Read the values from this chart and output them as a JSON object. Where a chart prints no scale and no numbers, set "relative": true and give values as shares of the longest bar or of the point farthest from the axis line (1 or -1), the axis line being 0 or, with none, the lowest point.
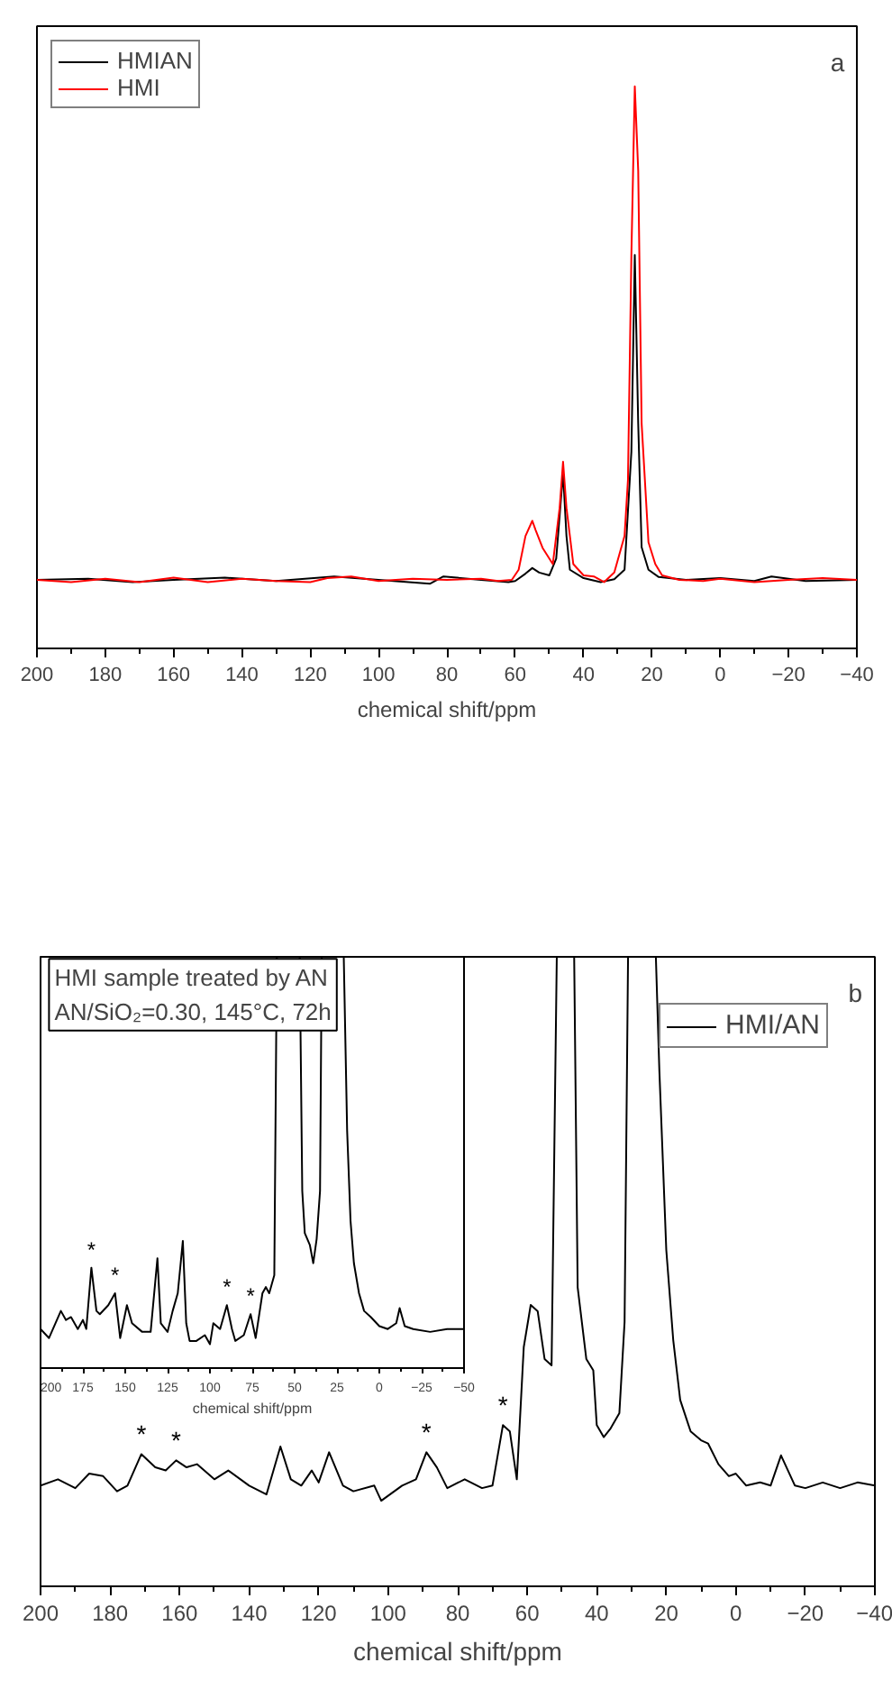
{
  "chart_data": [
    {
      "type": "line",
      "relative": true,
      "xlabel": "chemical shift/ppm",
      "xlim": [
        200,
        -40
      ],
      "xticks": [
        200,
        180,
        160,
        140,
        120,
        100,
        80,
        60,
        40,
        20,
        0,
        -20,
        -40
      ],
      "legend": "top left",
      "grid": false,
      "annotations": [
        "a"
      ],
      "series": [
        {
          "name": "HMIAN",
          "color": "#000000",
          "x": [
            200,
            185,
            172,
            160,
            145,
            130,
            113,
            100,
            85,
            81,
            70,
            62,
            60,
            57,
            55,
            53,
            50,
            48,
            46,
            45,
            44,
            40,
            35,
            31,
            28,
            26,
            25,
            24,
            23,
            21,
            18,
            10,
            0,
            -10,
            -15,
            -25,
            -40
          ],
          "values": [
            0.122,
            0.124,
            0.118,
            0.122,
            0.126,
            0.12,
            0.128,
            0.122,
            0.115,
            0.128,
            0.122,
            0.118,
            0.12,
            0.133,
            0.143,
            0.135,
            0.13,
            0.16,
            0.312,
            0.2,
            0.14,
            0.125,
            0.118,
            0.123,
            0.14,
            0.35,
            0.7,
            0.4,
            0.18,
            0.14,
            0.127,
            0.122,
            0.125,
            0.12,
            0.128,
            0.12,
            0.122
          ]
        },
        {
          "name": "HMI",
          "color": "#ff0000",
          "x": [
            200,
            190,
            180,
            170,
            160,
            150,
            140,
            130,
            120,
            115,
            108,
            100,
            90,
            80,
            70,
            65,
            61,
            59,
            57,
            55,
            54,
            52,
            49,
            47,
            46,
            45,
            43,
            40,
            37,
            34,
            31,
            28,
            27,
            26,
            25,
            24,
            23,
            21,
            19,
            17,
            12,
            5,
            0,
            -10,
            -20,
            -30,
            -40
          ],
          "values": [
            0.122,
            0.118,
            0.124,
            0.118,
            0.126,
            0.118,
            0.124,
            0.12,
            0.118,
            0.125,
            0.128,
            0.12,
            0.124,
            0.122,
            0.124,
            0.12,
            0.122,
            0.14,
            0.2,
            0.227,
            0.21,
            0.179,
            0.15,
            0.25,
            0.332,
            0.25,
            0.15,
            0.13,
            0.128,
            0.118,
            0.135,
            0.2,
            0.3,
            0.7,
            1.0,
            0.85,
            0.4,
            0.189,
            0.15,
            0.13,
            0.122,
            0.12,
            0.124,
            0.118,
            0.122,
            0.125,
            0.122
          ]
        }
      ]
    },
    {
      "type": "line",
      "relative": true,
      "xlabel": "chemical shift/ppm",
      "xlim": [
        200,
        -40
      ],
      "xticks": [
        200,
        180,
        160,
        140,
        120,
        100,
        80,
        60,
        40,
        20,
        0,
        -20,
        -40
      ],
      "legend": "top right",
      "grid": false,
      "annotations": [
        "b",
        {
          "text": "*",
          "x": 171,
          "y": 0.21
        },
        {
          "text": "*",
          "x": 161,
          "y": 0.2
        },
        {
          "text": "*",
          "x": 89,
          "y": 0.213
        },
        {
          "text": "*",
          "x": 67,
          "y": 0.256
        }
      ],
      "series": [
        {
          "name": "HMI/AN",
          "color": "#000000",
          "x": [
            200,
            195,
            190,
            186,
            182,
            178,
            175,
            171,
            167,
            164,
            161,
            158,
            155,
            150,
            146,
            140,
            135,
            131,
            128,
            125,
            122,
            120,
            117,
            113,
            110,
            104,
            102,
            96,
            92,
            89,
            86,
            83,
            78,
            73,
            70,
            67,
            65,
            63,
            61,
            59,
            57,
            55,
            53,
            51.5,
            46.5,
            45.5,
            43,
            41,
            40,
            38,
            36,
            33.5,
            32,
            31,
            23,
            22,
            20,
            18,
            16,
            13,
            10,
            8,
            5,
            2,
            0,
            -3,
            -7,
            -10,
            -13,
            -17,
            -20,
            -25,
            -30,
            -35,
            -40
          ],
          "values": [
            0.16,
            0.17,
            0.156,
            0.179,
            0.175,
            0.151,
            0.16,
            0.21,
            0.189,
            0.184,
            0.2,
            0.189,
            0.194,
            0.17,
            0.184,
            0.16,
            0.146,
            0.222,
            0.17,
            0.16,
            0.184,
            0.165,
            0.213,
            0.16,
            0.151,
            0.16,
            0.136,
            0.16,
            0.17,
            0.213,
            0.189,
            0.156,
            0.17,
            0.156,
            0.16,
            0.256,
            0.246,
            0.17,
            0.38,
            0.447,
            0.437,
            0.361,
            0.351,
            1,
            1,
            0.475,
            0.361,
            0.343,
            0.256,
            0.237,
            0.251,
            0.275,
            0.42,
            1,
            1,
            0.82,
            0.534,
            0.391,
            0.296,
            0.246,
            0.232,
            0.227,
            0.194,
            0.175,
            0.179,
            0.16,
            0.165,
            0.16,
            0.208,
            0.16,
            0.156,
            0.165,
            0.156,
            0.165,
            0.16
          ]
        }
      ]
    },
    {
      "type": "line",
      "relative": true,
      "xlabel": "chemical shift/ppm",
      "xlim": [
        200,
        -50
      ],
      "xticks": [
        200,
        175,
        150,
        125,
        100,
        75,
        50,
        25,
        0,
        -25,
        -50
      ],
      "grid": false,
      "annotations": [
        "HMI sample treated by AN",
        "AN/SiO₂=0.30, 145°C, 72h",
        {
          "text": "*",
          "x": 170,
          "y": 0.244
        },
        {
          "text": "*",
          "x": 156,
          "y": 0.182
        },
        {
          "text": "*",
          "x": 90,
          "y": 0.153
        },
        {
          "text": "*",
          "x": 76,
          "y": 0.131
        }
      ],
      "series": [
        {
          "color": "#000000",
          "x": [
            200,
            195,
            188,
            185,
            182,
            178,
            175,
            173,
            170,
            167,
            165,
            160,
            156,
            153,
            149,
            146,
            140,
            135,
            131,
            129,
            125,
            122,
            119,
            116,
            114,
            112,
            108,
            103,
            100,
            98,
            94,
            90,
            87,
            85,
            80,
            76,
            73,
            69,
            67,
            65,
            62,
            60.5,
            47,
            45.5,
            44,
            41,
            39,
            37,
            35,
            34,
            21,
            19,
            17,
            15,
            12,
            9,
            5,
            0,
            -5,
            -10,
            -12,
            -15,
            -20,
            -30,
            -40,
            -50
          ],
          "values": [
            0.095,
            0.073,
            0.139,
            0.117,
            0.124,
            0.095,
            0.117,
            0.095,
            0.244,
            0.139,
            0.131,
            0.153,
            0.182,
            0.073,
            0.153,
            0.109,
            0.088,
            0.088,
            0.267,
            0.109,
            0.088,
            0.139,
            0.182,
            0.309,
            0.109,
            0.066,
            0.066,
            0.08,
            0.058,
            0.109,
            0.095,
            0.153,
            0.095,
            0.066,
            0.08,
            0.131,
            0.073,
            0.182,
            0.197,
            0.182,
            0.226,
            1,
            1,
            0.431,
            0.328,
            0.299,
            0.255,
            0.314,
            0.431,
            1,
            1,
            0.577,
            0.358,
            0.255,
            0.182,
            0.139,
            0.124,
            0.102,
            0.095,
            0.109,
            0.146,
            0.102,
            0.095,
            0.088,
            0.095,
            0.095
          ]
        }
      ]
    }
  ]
}
